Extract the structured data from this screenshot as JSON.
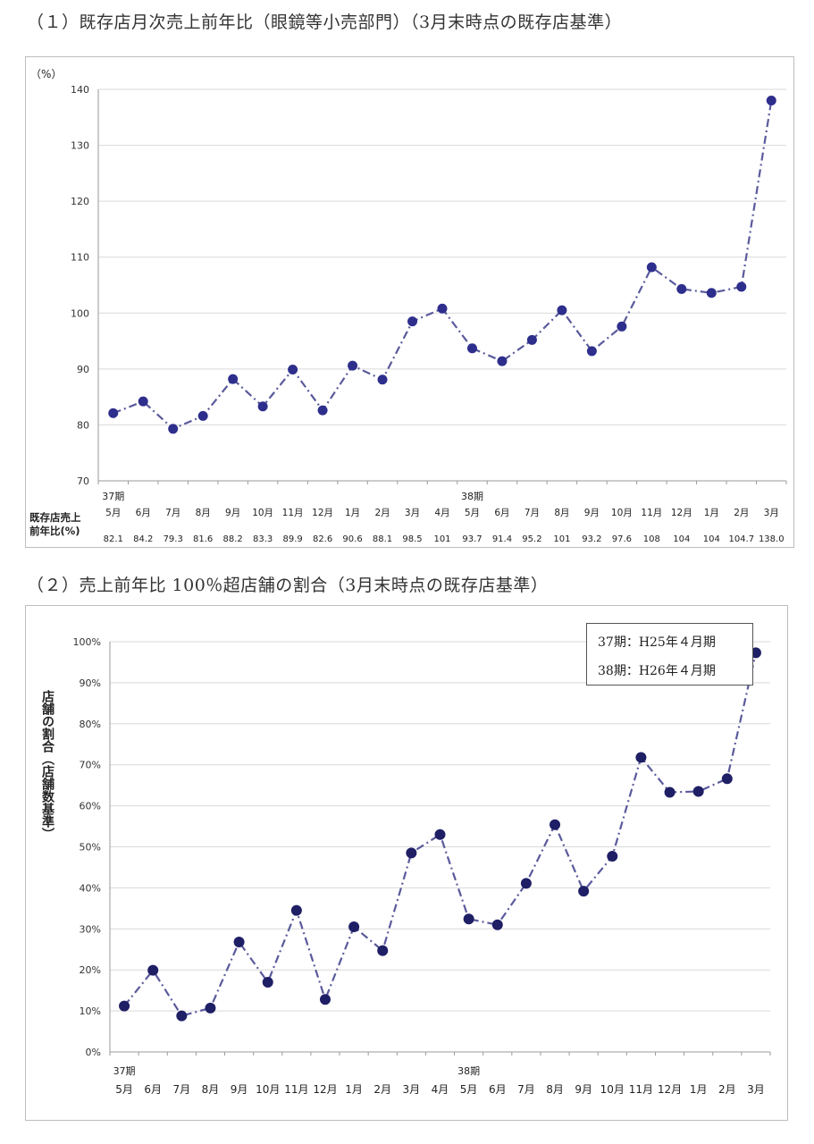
{
  "headings": {
    "chart1": "（１）既存店月次売上前年比（眼鏡等小売部門）（3月末時点の既存店基準）",
    "chart2": "（２）売上前年比 100％超店舗の割合（3月末時点の既存店基準）"
  },
  "legend": {
    "line1": "37期：H25年４月期",
    "line2": "38期：H26年４月期"
  },
  "colors": {
    "line": "#5a5a9c",
    "marker1": "#2e2e8c",
    "marker2": "#1f1f66",
    "grid": "#d9d9d9"
  },
  "chart_data": [
    {
      "type": "line",
      "title": "既存店月次売上前年比（眼鏡等小売部門）（3月末時点の既存店基準）",
      "yunit": "（%）",
      "ylim": [
        70,
        140
      ],
      "yticks": [
        "70",
        "80",
        "90",
        "100",
        "110",
        "120",
        "130",
        "140"
      ],
      "categories": [
        "5月",
        "6月",
        "7月",
        "8月",
        "9月",
        "10月",
        "11月",
        "12月",
        "1月",
        "2月",
        "3月",
        "4月",
        "5月",
        "6月",
        "7月",
        "8月",
        "9月",
        "10月",
        "11月",
        "12月",
        "1月",
        "2月",
        "3月"
      ],
      "period_labels": [
        {
          "index": 0,
          "label": "37期"
        },
        {
          "index": 12,
          "label": "38期"
        }
      ],
      "table_row_label": [
        "既存店売上",
        "前年比(%)"
      ],
      "value_labels": [
        "82.1",
        "84.2",
        "79.3",
        "81.6",
        "88.2",
        "83.3",
        "89.9",
        "82.6",
        "90.6",
        "88.1",
        "98.5",
        "101",
        "93.7",
        "91.4",
        "95.2",
        "101",
        "93.2",
        "97.6",
        "108",
        "104",
        "104",
        "104.7",
        "138.0"
      ],
      "values": [
        82.1,
        84.2,
        79.3,
        81.6,
        88.2,
        83.3,
        89.9,
        82.6,
        90.6,
        88.1,
        98.5,
        100.8,
        93.7,
        91.4,
        95.2,
        100.5,
        93.2,
        97.6,
        108.2,
        104.3,
        103.6,
        104.7,
        138.0
      ]
    },
    {
      "type": "line",
      "title": "売上前年比 100％超店舗の割合（3月末時点の既存店基準）",
      "ylabel": "店舗の割合（店舗数基準）",
      "ylim": [
        0,
        100
      ],
      "yticks": [
        "0%",
        "10%",
        "20%",
        "30%",
        "40%",
        "50%",
        "60%",
        "70%",
        "80%",
        "90%",
        "100%"
      ],
      "categories": [
        "5月",
        "6月",
        "7月",
        "8月",
        "9月",
        "10月",
        "11月",
        "12月",
        "1月",
        "2月",
        "3月",
        "4月",
        "5月",
        "6月",
        "7月",
        "8月",
        "9月",
        "10月",
        "11月",
        "12月",
        "1月",
        "2月",
        "3月"
      ],
      "period_labels": [
        {
          "index": 0,
          "label": "37期"
        },
        {
          "index": 12,
          "label": "38期"
        }
      ],
      "values": [
        11.2,
        19.9,
        8.8,
        10.7,
        26.8,
        17.0,
        34.5,
        12.8,
        30.5,
        24.7,
        48.5,
        53.0,
        32.4,
        31.0,
        41.1,
        55.4,
        39.2,
        47.7,
        71.8,
        63.3,
        63.5,
        66.6,
        97.3
      ]
    }
  ]
}
